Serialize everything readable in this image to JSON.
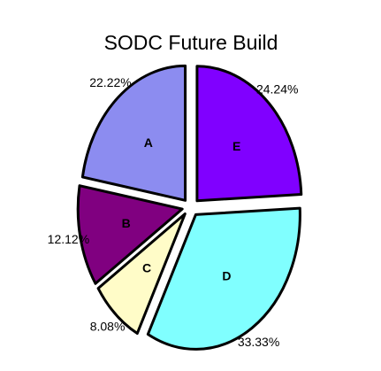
{
  "chart_data": {
    "type": "pie",
    "title": "SODC Future Build",
    "categories": [
      "E",
      "D",
      "C",
      "B",
      "A"
    ],
    "values": [
      24.24,
      33.33,
      8.08,
      12.12,
      22.22
    ],
    "value_labels": [
      "24.24%",
      "33.33%",
      "8.08%",
      "12.12%",
      "22.22%"
    ],
    "colors": [
      "#8000ff",
      "#80ffff",
      "#fffcc8",
      "#800080",
      "#8c8cf0"
    ]
  }
}
